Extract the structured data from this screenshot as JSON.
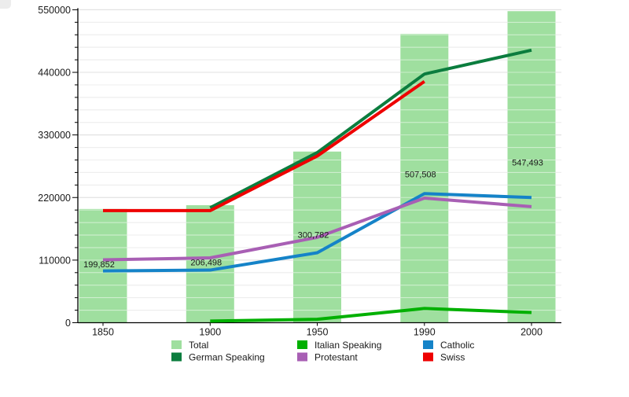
{
  "chart_data": {
    "type": "bar+line",
    "title": "",
    "categories": [
      "1850",
      "1900",
      "1950",
      "1990",
      "2000"
    ],
    "bars": {
      "name": "Total",
      "color": "#9fdf9f",
      "values": [
        199852,
        206498,
        300782,
        507508,
        547493
      ],
      "value_labels": [
        "199,852",
        "206,498",
        "300,782",
        "507,508",
        "547,493"
      ]
    },
    "series": [
      {
        "name": "German Speaking",
        "color": "#0b7d3e",
        "values": [
          null,
          202000,
          299000,
          437000,
          479000
        ]
      },
      {
        "name": "Italian Speaking",
        "color": "#00b000",
        "values": [
          null,
          3000,
          6000,
          25000,
          18000
        ]
      },
      {
        "name": "Catholic",
        "color": "#1583c8",
        "values": [
          91000,
          92500,
          123000,
          227000,
          220000
        ]
      },
      {
        "name": "Protestant",
        "color": "#a85fb4",
        "values": [
          110500,
          114000,
          150000,
          219000,
          204000
        ]
      },
      {
        "name": "Swiss",
        "color": "#ee0000",
        "values": [
          197000,
          197000,
          293000,
          424000,
          null
        ]
      }
    ],
    "y_axis": {
      "min": 0,
      "max": 550000,
      "major_step": 110000,
      "minor_step": 22000,
      "tick_labels": [
        "0",
        "110000",
        "220000",
        "330000",
        "440000",
        "550000"
      ]
    },
    "x_axis": {
      "tick_labels": [
        "1850",
        "1900",
        "1950",
        "1990",
        "2000"
      ]
    },
    "grid": {
      "horizontal": true,
      "minor_color": "#d9d9d9",
      "major_color": "#c8c8c8"
    },
    "legend": {
      "position": "bottom",
      "columns": [
        [
          {
            "label": "Total",
            "color": "#9fdf9f"
          },
          {
            "label": "German Speaking",
            "color": "#0b7d3e"
          }
        ],
        [
          {
            "label": "Italian Speaking",
            "color": "#00b000"
          },
          {
            "label": "Protestant",
            "color": "#a85fb4"
          }
        ],
        [
          {
            "label": "Catholic",
            "color": "#1583c8"
          },
          {
            "label": "Swiss",
            "color": "#ee0000"
          }
        ]
      ]
    }
  }
}
